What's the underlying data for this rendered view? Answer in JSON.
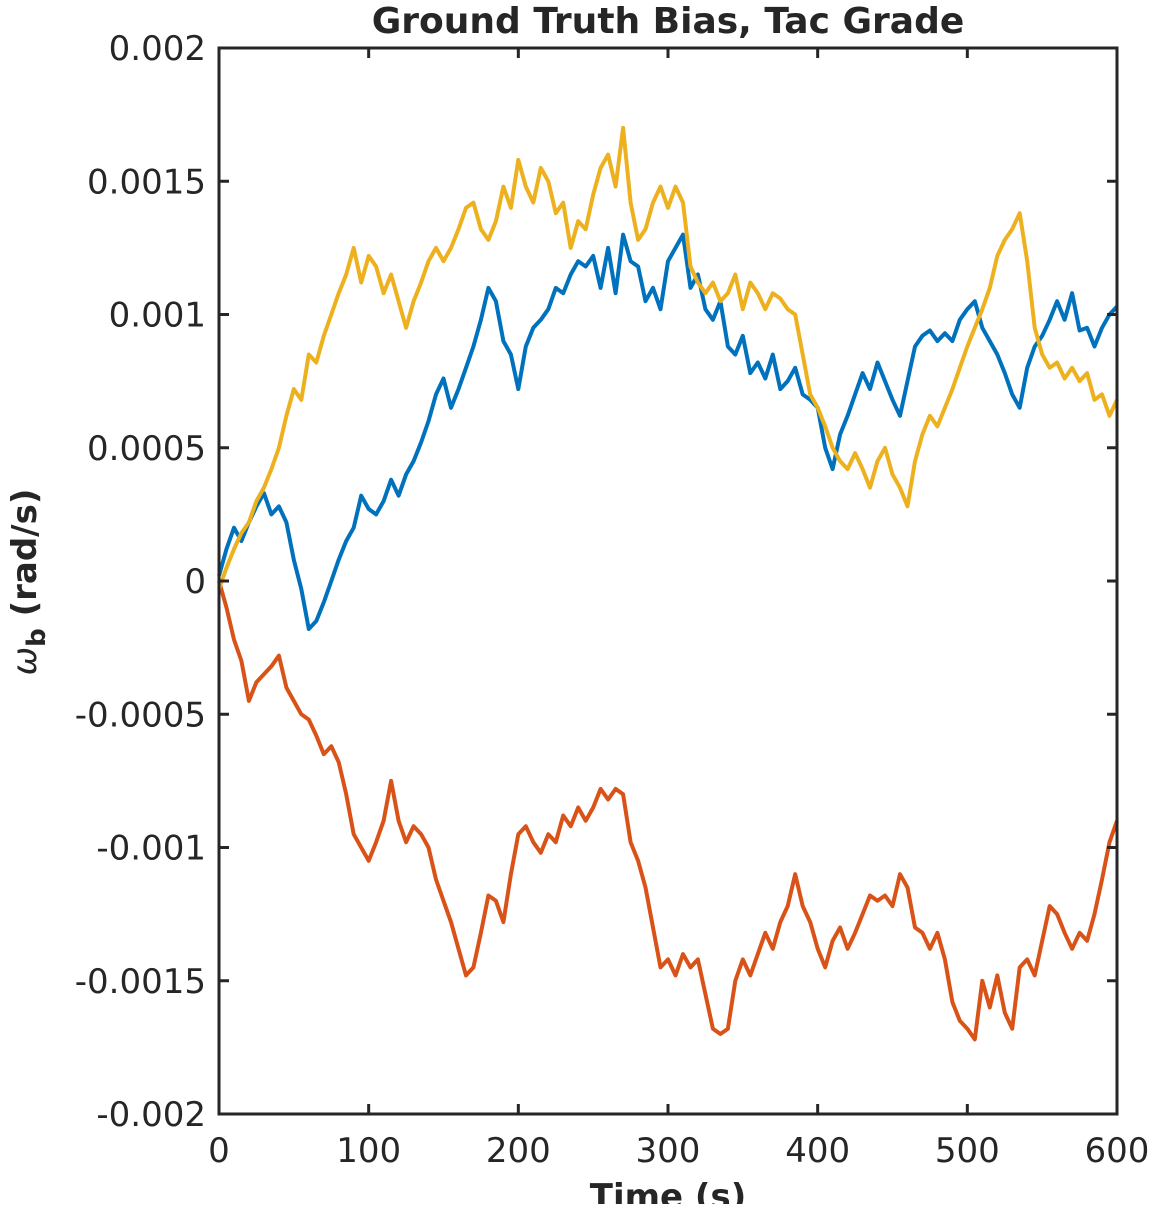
{
  "chart_data": {
    "type": "line",
    "title": "Ground Truth Bias, Tac Grade",
    "xlabel": "Time (s)",
    "ylabel_symbol": "ω",
    "ylabel_subscript": "b",
    "ylabel_unit": "(rad/s)",
    "xlim": [
      0,
      600
    ],
    "ylim": [
      -0.002,
      0.002
    ],
    "x_ticks": [
      0,
      100,
      200,
      300,
      400,
      500,
      600
    ],
    "x_tick_labels": [
      "0",
      "100",
      "200",
      "300",
      "400",
      "500",
      "600"
    ],
    "y_ticks": [
      -0.002,
      -0.0015,
      -0.001,
      -0.0005,
      0,
      0.0005,
      0.001,
      0.0015,
      0.002
    ],
    "y_tick_labels": [
      "-0.002",
      "-0.0015",
      "-0.001",
      "-0.0005",
      "0",
      "0.0005",
      "0.001",
      "0.0015",
      "0.002"
    ],
    "grid": false,
    "series": [
      {
        "color": "#0072BD",
        "x": [
          0,
          5,
          10,
          15,
          20,
          25,
          30,
          35,
          40,
          45,
          50,
          55,
          60,
          65,
          70,
          75,
          80,
          85,
          90,
          95,
          100,
          105,
          110,
          115,
          120,
          125,
          130,
          135,
          140,
          145,
          150,
          155,
          160,
          165,
          170,
          175,
          180,
          185,
          190,
          195,
          200,
          205,
          210,
          215,
          220,
          225,
          230,
          235,
          240,
          245,
          250,
          255,
          260,
          265,
          270,
          275,
          280,
          285,
          290,
          295,
          300,
          305,
          310,
          315,
          320,
          325,
          330,
          335,
          340,
          345,
          350,
          355,
          360,
          365,
          370,
          375,
          380,
          385,
          390,
          395,
          400,
          405,
          410,
          415,
          420,
          425,
          430,
          435,
          440,
          445,
          450,
          455,
          460,
          465,
          470,
          475,
          480,
          485,
          490,
          495,
          500,
          505,
          510,
          515,
          520,
          525,
          530,
          535,
          540,
          545,
          550,
          555,
          560,
          565,
          570,
          575,
          580,
          585,
          590,
          595,
          600
        ],
        "y": [
          2e-05,
          0.00012,
          0.0002,
          0.00015,
          0.00022,
          0.00028,
          0.00033,
          0.00025,
          0.00028,
          0.00022,
          8e-05,
          -3e-05,
          -0.00018,
          -0.00015,
          -8e-05,
          0.0,
          8e-05,
          0.00015,
          0.0002,
          0.00032,
          0.00027,
          0.00025,
          0.0003,
          0.00038,
          0.00032,
          0.0004,
          0.00045,
          0.00052,
          0.0006,
          0.0007,
          0.00076,
          0.00065,
          0.00072,
          0.0008,
          0.00088,
          0.00098,
          0.0011,
          0.00105,
          0.0009,
          0.00085,
          0.00072,
          0.00088,
          0.00095,
          0.00098,
          0.00102,
          0.0011,
          0.00108,
          0.00115,
          0.0012,
          0.00118,
          0.00122,
          0.0011,
          0.00125,
          0.00108,
          0.0013,
          0.0012,
          0.00118,
          0.00105,
          0.0011,
          0.00102,
          0.0012,
          0.00125,
          0.0013,
          0.0011,
          0.00115,
          0.00102,
          0.00098,
          0.00105,
          0.00088,
          0.00085,
          0.00092,
          0.00078,
          0.00082,
          0.00076,
          0.00085,
          0.00072,
          0.00075,
          0.0008,
          0.0007,
          0.00068,
          0.00065,
          0.0005,
          0.00042,
          0.00055,
          0.00062,
          0.0007,
          0.00078,
          0.00072,
          0.00082,
          0.00075,
          0.00068,
          0.00062,
          0.00075,
          0.00088,
          0.00092,
          0.00094,
          0.0009,
          0.00093,
          0.0009,
          0.00098,
          0.00102,
          0.00105,
          0.00095,
          0.0009,
          0.00085,
          0.00078,
          0.0007,
          0.00065,
          0.0008,
          0.00088,
          0.00092,
          0.00098,
          0.00105,
          0.00098,
          0.00108,
          0.00094,
          0.00095,
          0.00088,
          0.00095,
          0.001,
          0.00103
        ]
      },
      {
        "color": "#D95319",
        "x": [
          0,
          5,
          10,
          15,
          20,
          25,
          30,
          35,
          40,
          45,
          50,
          55,
          60,
          65,
          70,
          75,
          80,
          85,
          90,
          95,
          100,
          105,
          110,
          115,
          120,
          125,
          130,
          135,
          140,
          145,
          150,
          155,
          160,
          165,
          170,
          175,
          180,
          185,
          190,
          195,
          200,
          205,
          210,
          215,
          220,
          225,
          230,
          235,
          240,
          245,
          250,
          255,
          260,
          265,
          270,
          275,
          280,
          285,
          290,
          295,
          300,
          305,
          310,
          315,
          320,
          325,
          330,
          335,
          340,
          345,
          350,
          355,
          360,
          365,
          370,
          375,
          380,
          385,
          390,
          395,
          400,
          405,
          410,
          415,
          420,
          425,
          430,
          435,
          440,
          445,
          450,
          455,
          460,
          465,
          470,
          475,
          480,
          485,
          490,
          495,
          500,
          505,
          510,
          515,
          520,
          525,
          530,
          535,
          540,
          545,
          550,
          555,
          560,
          565,
          570,
          575,
          580,
          585,
          590,
          595,
          600
        ],
        "y": [
          0.0,
          -0.0001,
          -0.00022,
          -0.0003,
          -0.00045,
          -0.00038,
          -0.00035,
          -0.00032,
          -0.00028,
          -0.0004,
          -0.00045,
          -0.0005,
          -0.00052,
          -0.00058,
          -0.00065,
          -0.00062,
          -0.00068,
          -0.0008,
          -0.00095,
          -0.001,
          -0.00105,
          -0.00098,
          -0.0009,
          -0.00075,
          -0.0009,
          -0.00098,
          -0.00092,
          -0.00095,
          -0.001,
          -0.00112,
          -0.0012,
          -0.00128,
          -0.00138,
          -0.00148,
          -0.00145,
          -0.00132,
          -0.00118,
          -0.0012,
          -0.00128,
          -0.0011,
          -0.00095,
          -0.00092,
          -0.00098,
          -0.00102,
          -0.00095,
          -0.00098,
          -0.00088,
          -0.00092,
          -0.00085,
          -0.0009,
          -0.00085,
          -0.00078,
          -0.00082,
          -0.00078,
          -0.0008,
          -0.00098,
          -0.00105,
          -0.00115,
          -0.0013,
          -0.00145,
          -0.00142,
          -0.00148,
          -0.0014,
          -0.00145,
          -0.00142,
          -0.00155,
          -0.00168,
          -0.0017,
          -0.00168,
          -0.0015,
          -0.00142,
          -0.00148,
          -0.0014,
          -0.00132,
          -0.00138,
          -0.00128,
          -0.00122,
          -0.0011,
          -0.00122,
          -0.00128,
          -0.00138,
          -0.00145,
          -0.00135,
          -0.0013,
          -0.00138,
          -0.00132,
          -0.00125,
          -0.00118,
          -0.0012,
          -0.00118,
          -0.00122,
          -0.0011,
          -0.00115,
          -0.0013,
          -0.00132,
          -0.00138,
          -0.00132,
          -0.00142,
          -0.00158,
          -0.00165,
          -0.00168,
          -0.00172,
          -0.0015,
          -0.0016,
          -0.00148,
          -0.00162,
          -0.00168,
          -0.00145,
          -0.00142,
          -0.00148,
          -0.00135,
          -0.00122,
          -0.00125,
          -0.00132,
          -0.00138,
          -0.00132,
          -0.00135,
          -0.00125,
          -0.00112,
          -0.00098,
          -0.0009
        ]
      },
      {
        "color": "#EDB120",
        "x": [
          0,
          5,
          10,
          15,
          20,
          25,
          30,
          35,
          40,
          45,
          50,
          55,
          60,
          65,
          70,
          75,
          80,
          85,
          90,
          95,
          100,
          105,
          110,
          115,
          120,
          125,
          130,
          135,
          140,
          145,
          150,
          155,
          160,
          165,
          170,
          175,
          180,
          185,
          190,
          195,
          200,
          205,
          210,
          215,
          220,
          225,
          230,
          235,
          240,
          245,
          250,
          255,
          260,
          265,
          270,
          275,
          280,
          285,
          290,
          295,
          300,
          305,
          310,
          315,
          320,
          325,
          330,
          335,
          340,
          345,
          350,
          355,
          360,
          365,
          370,
          375,
          380,
          385,
          390,
          395,
          400,
          405,
          410,
          415,
          420,
          425,
          430,
          435,
          440,
          445,
          450,
          455,
          460,
          465,
          470,
          475,
          480,
          485,
          490,
          495,
          500,
          505,
          510,
          515,
          520,
          525,
          530,
          535,
          540,
          545,
          550,
          555,
          560,
          565,
          570,
          575,
          580,
          585,
          590,
          595,
          600
        ],
        "y": [
          -3e-05,
          5e-05,
          0.00012,
          0.00018,
          0.00022,
          0.0003,
          0.00035,
          0.00042,
          0.0005,
          0.00062,
          0.00072,
          0.00068,
          0.00085,
          0.00082,
          0.00092,
          0.001,
          0.00108,
          0.00115,
          0.00125,
          0.00112,
          0.00122,
          0.00118,
          0.00108,
          0.00115,
          0.00105,
          0.00095,
          0.00105,
          0.00112,
          0.0012,
          0.00125,
          0.0012,
          0.00125,
          0.00132,
          0.0014,
          0.00142,
          0.00132,
          0.00128,
          0.00135,
          0.00148,
          0.0014,
          0.00158,
          0.00148,
          0.00142,
          0.00155,
          0.0015,
          0.00138,
          0.00142,
          0.00125,
          0.00135,
          0.00132,
          0.00145,
          0.00155,
          0.0016,
          0.00148,
          0.0017,
          0.00142,
          0.00128,
          0.00132,
          0.00142,
          0.00148,
          0.0014,
          0.00148,
          0.00142,
          0.00118,
          0.00112,
          0.00108,
          0.00112,
          0.00105,
          0.00108,
          0.00115,
          0.00102,
          0.00112,
          0.00108,
          0.00102,
          0.00108,
          0.00106,
          0.00102,
          0.001,
          0.00085,
          0.0007,
          0.00065,
          0.00058,
          0.0005,
          0.00045,
          0.00042,
          0.00048,
          0.00042,
          0.00035,
          0.00045,
          0.0005,
          0.0004,
          0.00035,
          0.00028,
          0.00045,
          0.00055,
          0.00062,
          0.00058,
          0.00065,
          0.00072,
          0.0008,
          0.00088,
          0.00095,
          0.00102,
          0.0011,
          0.00122,
          0.00128,
          0.00132,
          0.00138,
          0.0012,
          0.00095,
          0.00085,
          0.0008,
          0.00082,
          0.00076,
          0.0008,
          0.00075,
          0.00078,
          0.00068,
          0.0007,
          0.00062,
          0.00068
        ]
      }
    ]
  }
}
